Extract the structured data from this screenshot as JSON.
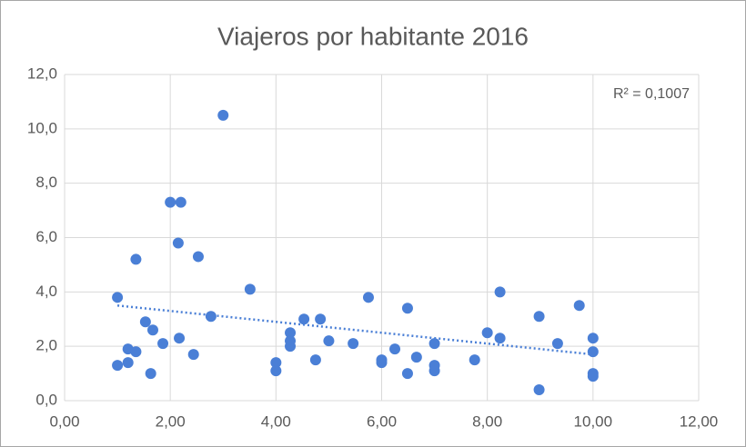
{
  "chart_data": {
    "type": "scatter",
    "title": "Viajeros por habitante 2016",
    "x": [
      1.0,
      1.0,
      1.2,
      1.2,
      1.35,
      1.35,
      1.53,
      1.67,
      1.63,
      1.86,
      2.0,
      2.2,
      2.15,
      2.17,
      2.44,
      2.53,
      2.77,
      3.0,
      3.51,
      4.0,
      4.0,
      4.27,
      4.27,
      4.27,
      4.53,
      4.84,
      4.75,
      5.0,
      5.46,
      5.75,
      6.0,
      6.0,
      6.25,
      6.49,
      6.49,
      6.66,
      7.0,
      7.0,
      7.0,
      7.76,
      8.0,
      8.24,
      8.24,
      8.98,
      8.98,
      9.33,
      9.74,
      10.0,
      10.0,
      10.0,
      10.0
    ],
    "values": [
      3.8,
      1.3,
      1.9,
      1.4,
      1.8,
      5.2,
      2.9,
      2.6,
      1.0,
      2.1,
      7.3,
      7.3,
      5.8,
      2.3,
      1.7,
      5.3,
      3.1,
      10.5,
      4.1,
      1.4,
      1.1,
      2.5,
      2.2,
      2.0,
      3.0,
      3.0,
      1.5,
      2.2,
      2.1,
      3.8,
      1.5,
      1.4,
      1.9,
      3.4,
      1.0,
      1.6,
      2.1,
      1.3,
      1.1,
      1.5,
      2.5,
      4.0,
      2.3,
      3.1,
      0.4,
      2.1,
      3.5,
      2.3,
      1.8,
      1.0,
      0.9
    ],
    "color": "#4a7fd6",
    "trendline": {
      "x": [
        1.0,
        10.0
      ],
      "y": [
        3.5,
        1.7
      ],
      "annotation": "R² = 0,1007"
    },
    "xlim": [
      0,
      12
    ],
    "ylim": [
      0,
      12
    ],
    "xticks": [
      {
        "value": 0,
        "label": "0,00"
      },
      {
        "value": 2,
        "label": "2,00"
      },
      {
        "value": 4,
        "label": "4,00"
      },
      {
        "value": 6,
        "label": "6,00"
      },
      {
        "value": 8,
        "label": "8,00"
      },
      {
        "value": 10,
        "label": "10,00"
      },
      {
        "value": 12,
        "label": "12,00"
      }
    ],
    "yticks": [
      {
        "value": 0,
        "label": "0,0"
      },
      {
        "value": 2,
        "label": "2,0"
      },
      {
        "value": 4,
        "label": "4,0"
      },
      {
        "value": 6,
        "label": "6,0"
      },
      {
        "value": 8,
        "label": "8,0"
      },
      {
        "value": 10,
        "label": "10,0"
      },
      {
        "value": 12,
        "label": "12,0"
      }
    ],
    "grid": true
  }
}
